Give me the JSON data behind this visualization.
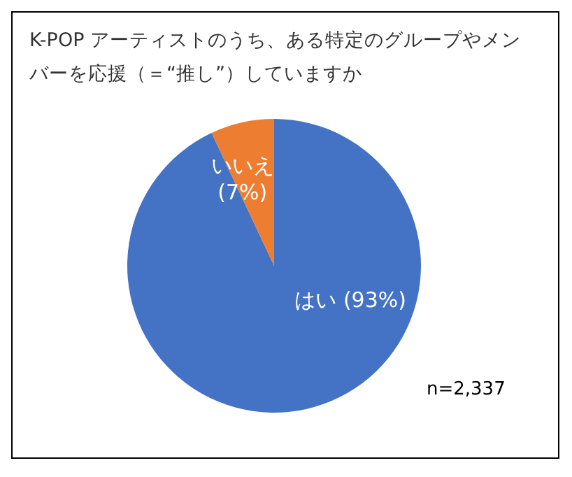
{
  "chart_data": {
    "type": "pie",
    "title": "K-POP アーティストのうち、ある特定のグループやメンバーを応援（＝“推し”）していますか",
    "categories": [
      "はい",
      "いいえ"
    ],
    "values": [
      93,
      7
    ],
    "colors": [
      "#4472c4",
      "#ed7d31"
    ],
    "value_labels": [
      "(93%)",
      "(7%)"
    ],
    "annotations": [
      "n=2,337"
    ]
  }
}
